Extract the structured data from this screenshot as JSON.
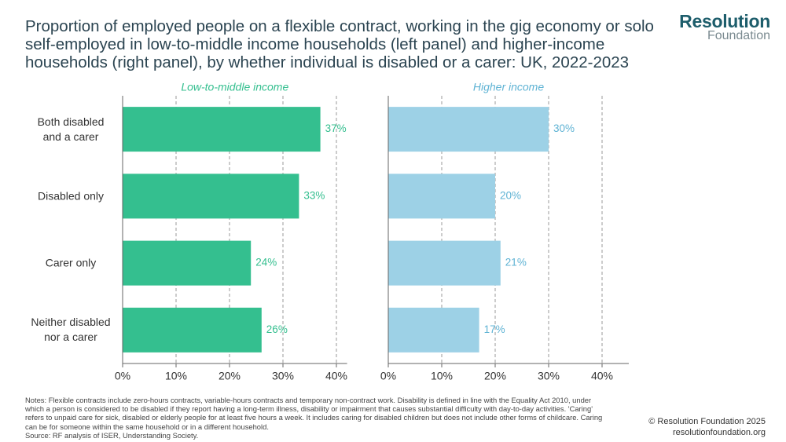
{
  "title": "Proportion of employed people on a flexible contract, working in the gig economy or solo self-employed in low-to-middle income households (left panel) and higher-income households (right panel), by whether individual is disabled or a carer: UK, 2022-2023",
  "logo": {
    "name": "Resolution",
    "subname": "Foundation"
  },
  "notes": "Notes: Flexible contracts include zero-hours contracts, variable-hours contracts and temporary non-contract work. Disability is defined in line with the Equality Act 2010, under which a person is considered to be disabled if they report having a long-term illness, disability or impairment that causes substantial difficulty with day-to-day activities. 'Caring' refers to unpaid care for sick, disabled or elderly people for at least five hours a week. It includes caring for disabled children but does not include other forms of childcare. Caring can be for someone within the same household or in a different household.",
  "source": "Source: RF analysis of ISER, Understanding Society.",
  "copyright": "© Resolution Foundation 2025",
  "website": "resolutionfoundation.org",
  "chart_data": [
    {
      "type": "hbar",
      "subtitle": "Low-to-middle income",
      "categories": [
        "Both disabled and a carer",
        "Disabled only",
        "Carer only",
        "Neither disabled nor a carer"
      ],
      "values": [
        37,
        33,
        24,
        26
      ],
      "value_labels": [
        "37%",
        "33%",
        "24%",
        "26%"
      ],
      "color": "#34bf8f",
      "xlim": [
        0,
        42
      ],
      "xticks": [
        {
          "value": 0,
          "label": "0%"
        },
        {
          "value": 10,
          "label": "10%"
        },
        {
          "value": 20,
          "label": "20%"
        },
        {
          "value": 30,
          "label": "30%"
        },
        {
          "value": 40,
          "label": "40%"
        }
      ],
      "grid": true
    },
    {
      "type": "hbar",
      "subtitle": "Higher income",
      "values": [
        30,
        20,
        21,
        17
      ],
      "value_labels": [
        "30%",
        "20%",
        "21%",
        "17%"
      ],
      "color": "#9dd1e6",
      "xlim": [
        0,
        45
      ],
      "xticks": [
        {
          "value": 0,
          "label": "0%"
        },
        {
          "value": 10,
          "label": "10%"
        },
        {
          "value": 20,
          "label": "20%"
        },
        {
          "value": 30,
          "label": "30%"
        },
        {
          "value": 40,
          "label": "40%"
        }
      ],
      "grid": true
    }
  ]
}
